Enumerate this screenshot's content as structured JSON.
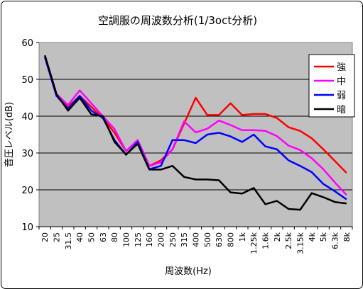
{
  "chart_data": {
    "type": "line",
    "title": "空調服の周波数分析(1/3oct分析)",
    "xlabel": "周波数(Hz)",
    "ylabel": "音圧レベル(dB)",
    "ylim": [
      10,
      60
    ],
    "yticks": [
      10,
      20,
      30,
      40,
      50,
      60
    ],
    "grid": true,
    "legend_position": "right",
    "plot_background": "#c0c0c0",
    "categories": [
      "20",
      "25",
      "31.5",
      "40",
      "50",
      "63",
      "80",
      "100",
      "125",
      "160",
      "200",
      "250",
      "315",
      "400",
      "500",
      "630",
      "800",
      "1k",
      "1.25k",
      "1.6k",
      "2k",
      "2.5k",
      "3.15k",
      "4k",
      "5k",
      "6.3k",
      "8k"
    ],
    "series": [
      {
        "name": "強",
        "color": "#ff0000",
        "values": [
          56.5,
          46.0,
          42.5,
          45.5,
          42.5,
          39.5,
          35.5,
          30.5,
          33.5,
          26.5,
          28.0,
          31.0,
          38.0,
          45.0,
          40.3,
          40.3,
          43.5,
          40.3,
          40.6,
          40.6,
          39.5,
          37.0,
          36.0,
          34.0,
          31.0,
          27.8,
          24.6
        ]
      },
      {
        "name": "中",
        "color": "#ff00ff",
        "values": [
          56.0,
          46.0,
          43.0,
          47.0,
          43.5,
          40.0,
          36.5,
          30.5,
          33.5,
          26.5,
          27.5,
          31.0,
          38.6,
          35.6,
          36.6,
          38.8,
          37.6,
          36.2,
          36.2,
          36.0,
          34.6,
          32.0,
          30.8,
          28.6,
          25.6,
          22.0,
          18.6
        ]
      },
      {
        "name": "弱",
        "color": "#0000ff",
        "values": [
          56.0,
          45.5,
          42.0,
          45.5,
          41.5,
          39.5,
          33.5,
          29.5,
          33.0,
          25.6,
          26.5,
          33.5,
          33.5,
          32.7,
          35.0,
          35.5,
          34.5,
          33.0,
          35.0,
          31.8,
          31.0,
          28.0,
          26.5,
          24.8,
          21.6,
          19.6,
          17.4
        ]
      },
      {
        "name": "暗",
        "color": "#000000",
        "values": [
          56.5,
          46.0,
          41.5,
          45.0,
          40.5,
          40.0,
          33.0,
          29.6,
          32.5,
          25.5,
          25.5,
          26.5,
          23.5,
          22.8,
          22.8,
          22.6,
          19.3,
          19.0,
          20.5,
          16.1,
          17.0,
          14.8,
          14.6,
          19.1,
          18.0,
          16.7,
          16.3
        ]
      }
    ]
  }
}
